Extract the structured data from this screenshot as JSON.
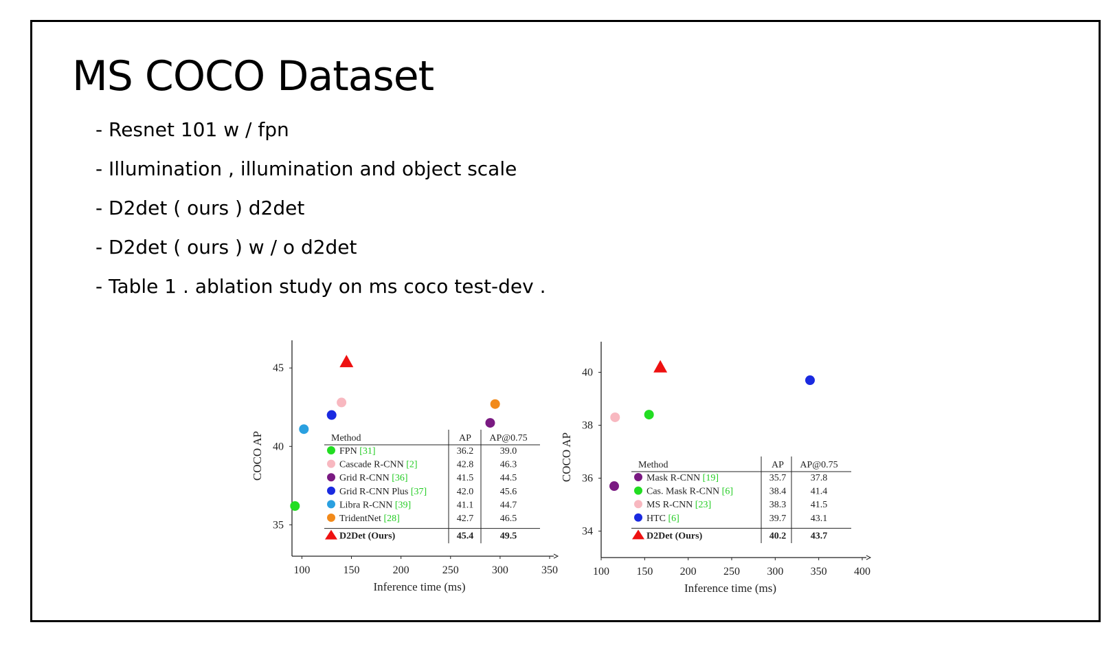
{
  "slide": {
    "title": "MS COCO Dataset",
    "bullets": [
      "- Resnet 101 w / fpn",
      "- Illumination , illumination and object scale",
      "- D2det ( ours ) d2det",
      "- D2det ( ours ) w / o d2det",
      "- Table 1 . ablation study on ms coco test-dev ."
    ]
  },
  "chart_data": [
    {
      "type": "scatter",
      "xlabel": "Inference time (ms)",
      "ylabel": "COCO AP",
      "xlim": [
        90,
        350
      ],
      "ylim": [
        33,
        46.5
      ],
      "xticks": [
        100,
        150,
        200,
        250,
        300,
        350
      ],
      "yticks": [
        35,
        40,
        45
      ],
      "series": [
        {
          "name": "FPN",
          "ref": "[31]",
          "color": "#22dd22",
          "marker": "circle",
          "x": 93,
          "y": 36.2,
          "ap": "36.2",
          "ap75": "39.0"
        },
        {
          "name": "Cascade R-CNN",
          "ref": "[2]",
          "color": "#f8b8c0",
          "marker": "circle",
          "x": 140,
          "y": 42.8,
          "ap": "42.8",
          "ap75": "46.3"
        },
        {
          "name": "Grid R-CNN",
          "ref": "[36]",
          "color": "#7a1a82",
          "marker": "circle",
          "x": 290,
          "y": 41.5,
          "ap": "41.5",
          "ap75": "44.5"
        },
        {
          "name": "Grid R-CNN Plus",
          "ref": "[37]",
          "color": "#1a2ae0",
          "marker": "circle",
          "x": 130,
          "y": 42.0,
          "ap": "42.0",
          "ap75": "45.6"
        },
        {
          "name": "Libra R-CNN",
          "ref": "[39]",
          "color": "#2aa0e0",
          "marker": "circle",
          "x": 102,
          "y": 41.1,
          "ap": "41.1",
          "ap75": "44.7"
        },
        {
          "name": "TridentNet",
          "ref": "[28]",
          "color": "#f28a1a",
          "marker": "circle",
          "x": 295,
          "y": 42.7,
          "ap": "42.7",
          "ap75": "46.5"
        },
        {
          "name": "D2Det (Ours)",
          "ref": "",
          "color": "#ee1111",
          "marker": "triangle",
          "x": 145,
          "y": 45.4,
          "ap": "45.4",
          "ap75": "49.5"
        }
      ],
      "table": {
        "headers": [
          "Method",
          "AP",
          "AP@0.75"
        ]
      }
    },
    {
      "type": "scatter",
      "xlabel": "Inference time (ms)",
      "ylabel": "COCO AP",
      "xlim": [
        100,
        400
      ],
      "ylim": [
        33,
        41
      ],
      "xticks": [
        100,
        150,
        200,
        250,
        300,
        350,
        400
      ],
      "yticks": [
        34,
        36,
        38,
        40
      ],
      "series": [
        {
          "name": "Mask R-CNN",
          "ref": "[19]",
          "color": "#7a1a82",
          "marker": "circle",
          "x": 115,
          "y": 35.7,
          "ap": "35.7",
          "ap75": "37.8"
        },
        {
          "name": "Cas. Mask R-CNN",
          "ref": "[6]",
          "color": "#22dd22",
          "marker": "circle",
          "x": 155,
          "y": 38.4,
          "ap": "38.4",
          "ap75": "41.4"
        },
        {
          "name": "MS R-CNN",
          "ref": "[23]",
          "color": "#f8b8c0",
          "marker": "circle",
          "x": 116,
          "y": 38.3,
          "ap": "38.3",
          "ap75": "41.5"
        },
        {
          "name": "HTC",
          "ref": "[6]",
          "color": "#1a2ae0",
          "marker": "circle",
          "x": 340,
          "y": 39.7,
          "ap": "39.7",
          "ap75": "43.1"
        },
        {
          "name": "D2Det (Ours)",
          "ref": "",
          "color": "#ee1111",
          "marker": "triangle",
          "x": 168,
          "y": 40.2,
          "ap": "40.2",
          "ap75": "43.7"
        }
      ],
      "table": {
        "headers": [
          "Method",
          "AP",
          "AP@0.75"
        ]
      }
    }
  ]
}
